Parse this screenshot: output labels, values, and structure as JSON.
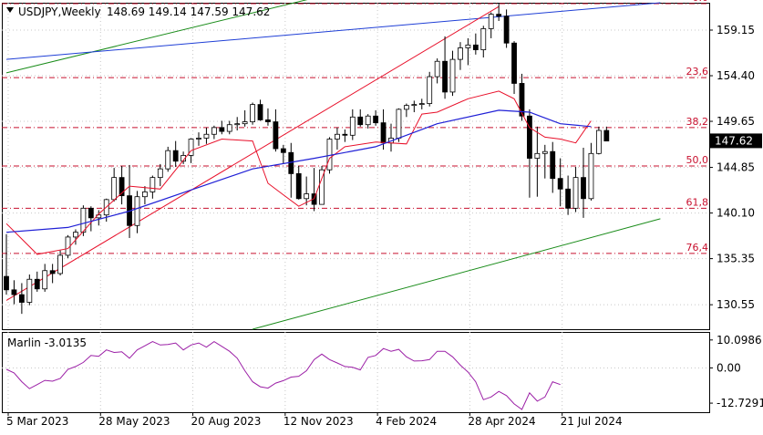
{
  "header": {
    "symbol_tf": "USDJPY,Weekly",
    "ohlc": "148.69 149.14 147.59 147.62"
  },
  "indicator": {
    "name": "Marlin -3.0135",
    "yticks": [
      "10.0986",
      "0.00",
      "-12.7291"
    ]
  },
  "colors": {
    "bull": "#ffffff",
    "bear": "#000000",
    "ma_blue": "#1f1fd6",
    "env_red": "#e8102a",
    "fib_red": "#c8102e",
    "trend_green": "#1a8c1a",
    "trend_blue": "#1f3fd6",
    "osc": "#9b1fa6",
    "price_tag": "#000000"
  },
  "chart_data": {
    "type": "candlestick",
    "timeframe": "weekly",
    "symbol": "USDJPY",
    "y_range": [
      128.0,
      162.0
    ],
    "price_ticks": [
      "159.15",
      "154.40",
      "149.65",
      "144.85",
      "140.10",
      "135.35",
      "130.55"
    ],
    "x_labels": [
      "5 Mar 2023",
      "28 May 2023",
      "20 Aug 2023",
      "12 Nov 2023",
      "4 Feb 2024",
      "28 Apr 2024",
      "21 Jul 2024"
    ],
    "current_price": "147.62",
    "fib_levels": [
      {
        "label": "0.0",
        "price": 161.9
      },
      {
        "label": "23,6",
        "price": 154.2
      },
      {
        "label": "38,2",
        "price": 149.0
      },
      {
        "label": "50,0",
        "price": 145.0
      },
      {
        "label": "61,8",
        "price": 140.6
      },
      {
        "label": "76,4",
        "price": 135.9
      }
    ],
    "candles": [
      [
        133.5,
        137.9,
        131.6,
        132.1
      ],
      [
        132.1,
        133.1,
        130.6,
        131.6
      ],
      [
        131.6,
        132.8,
        129.6,
        130.8
      ],
      [
        130.8,
        133.7,
        130.5,
        133.2
      ],
      [
        133.2,
        134.0,
        131.9,
        132.2
      ],
      [
        132.2,
        134.8,
        131.9,
        134.1
      ],
      [
        134.1,
        134.8,
        132.8,
        133.8
      ],
      [
        133.8,
        136.2,
        133.6,
        135.7
      ],
      [
        135.7,
        137.8,
        135.4,
        137.6
      ],
      [
        137.6,
        138.4,
        136.8,
        138.1
      ],
      [
        138.1,
        140.9,
        137.7,
        140.6
      ],
      [
        140.6,
        140.8,
        138.2,
        139.6
      ],
      [
        139.6,
        140.4,
        138.8,
        139.9
      ],
      [
        139.9,
        141.6,
        139.2,
        141.5
      ],
      [
        141.5,
        144.8,
        141.3,
        143.8
      ],
      [
        143.8,
        145.0,
        141.0,
        141.9
      ],
      [
        141.9,
        145.1,
        137.5,
        138.8
      ],
      [
        138.8,
        142.4,
        138.0,
        141.8
      ],
      [
        141.8,
        142.9,
        141.0,
        142.3
      ],
      [
        142.3,
        144.0,
        141.6,
        143.8
      ],
      [
        143.8,
        145.2,
        142.9,
        144.7
      ],
      [
        144.7,
        147.0,
        144.4,
        146.6
      ],
      [
        146.6,
        147.6,
        144.9,
        145.5
      ],
      [
        145.5,
        146.5,
        145.2,
        146.1
      ],
      [
        146.1,
        147.9,
        145.3,
        147.8
      ],
      [
        147.8,
        148.5,
        147.1,
        147.9
      ],
      [
        147.9,
        149.0,
        147.3,
        148.3
      ],
      [
        148.3,
        149.2,
        147.8,
        149.0
      ],
      [
        149.0,
        149.7,
        148.3,
        148.6
      ],
      [
        148.6,
        149.7,
        148.3,
        149.3
      ],
      [
        149.3,
        150.1,
        148.7,
        149.4
      ],
      [
        149.4,
        150.8,
        149.1,
        149.6
      ],
      [
        149.6,
        151.6,
        149.3,
        151.4
      ],
      [
        151.4,
        151.9,
        149.7,
        149.8
      ],
      [
        149.8,
        151.0,
        149.2,
        149.6
      ],
      [
        149.6,
        150.9,
        146.5,
        146.8
      ],
      [
        146.8,
        147.2,
        145.2,
        146.4
      ],
      [
        146.4,
        147.4,
        141.7,
        144.2
      ],
      [
        144.2,
        145.0,
        141.5,
        141.6
      ],
      [
        141.6,
        143.9,
        140.9,
        142.1
      ],
      [
        142.1,
        144.8,
        140.3,
        141.0
      ],
      [
        141.0,
        145.0,
        141.0,
        144.6
      ],
      [
        144.6,
        148.0,
        144.2,
        147.8
      ],
      [
        147.8,
        149.0,
        146.7,
        148.3
      ],
      [
        148.3,
        148.8,
        147.5,
        148.2
      ],
      [
        148.2,
        150.9,
        147.7,
        150.1
      ],
      [
        150.1,
        150.9,
        149.1,
        149.3
      ],
      [
        149.3,
        150.4,
        148.9,
        150.2
      ],
      [
        150.2,
        150.8,
        149.2,
        149.5
      ],
      [
        149.5,
        150.9,
        146.7,
        147.4
      ],
      [
        147.4,
        149.4,
        146.5,
        147.9
      ],
      [
        147.9,
        151.0,
        147.5,
        150.9
      ],
      [
        150.9,
        151.5,
        150.1,
        151.3
      ],
      [
        151.3,
        151.8,
        150.6,
        151.4
      ],
      [
        151.4,
        152.0,
        150.9,
        151.5
      ],
      [
        151.5,
        154.8,
        151.2,
        154.3
      ],
      [
        154.3,
        156.2,
        153.6,
        155.9
      ],
      [
        155.9,
        158.5,
        152.0,
        152.7
      ],
      [
        152.7,
        157.0,
        152.3,
        156.1
      ],
      [
        156.1,
        157.9,
        155.0,
        157.3
      ],
      [
        157.3,
        158.3,
        155.5,
        157.6
      ],
      [
        157.6,
        158.8,
        156.6,
        157.1
      ],
      [
        157.1,
        159.6,
        156.3,
        159.3
      ],
      [
        159.3,
        161.0,
        158.3,
        160.8
      ],
      [
        160.8,
        161.9,
        160.1,
        160.6
      ],
      [
        160.6,
        161.3,
        157.3,
        157.8
      ],
      [
        157.8,
        158.0,
        152.5,
        153.6
      ],
      [
        153.6,
        154.6,
        149.7,
        150.2
      ],
      [
        150.2,
        150.9,
        141.7,
        145.8
      ],
      [
        145.8,
        149.1,
        141.8,
        146.3
      ],
      [
        146.3,
        147.2,
        143.7,
        146.5
      ],
      [
        146.5,
        147.5,
        142.2,
        143.7
      ],
      [
        143.7,
        145.8,
        140.8,
        142.6
      ],
      [
        142.6,
        144.0,
        139.9,
        140.6
      ],
      [
        140.6,
        144.9,
        140.2,
        143.8
      ],
      [
        143.8,
        146.9,
        139.6,
        141.6
      ],
      [
        141.6,
        147.4,
        141.4,
        146.3
      ],
      [
        146.3,
        149.1,
        146.2,
        148.7
      ],
      [
        148.7,
        149.1,
        147.6,
        147.6
      ]
    ],
    "ma_blue": [
      [
        0,
        138.1
      ],
      [
        8,
        138.6
      ],
      [
        16,
        140.3
      ],
      [
        24,
        142.5
      ],
      [
        32,
        144.7
      ],
      [
        40,
        145.8
      ],
      [
        48,
        147.0
      ],
      [
        56,
        149.4
      ],
      [
        64,
        150.8
      ],
      [
        68,
        150.6
      ],
      [
        72,
        149.4
      ],
      [
        76,
        149.1
      ]
    ],
    "envelope_red": [
      [
        0,
        139.0
      ],
      [
        4,
        135.8
      ],
      [
        8,
        136.4
      ],
      [
        12,
        140.0
      ],
      [
        16,
        142.9
      ],
      [
        20,
        142.6
      ],
      [
        24,
        146.6
      ],
      [
        28,
        147.8
      ],
      [
        32,
        147.6
      ],
      [
        34,
        143.2
      ],
      [
        36,
        142.0
      ],
      [
        38,
        140.8
      ],
      [
        40,
        141.6
      ],
      [
        42,
        145.8
      ],
      [
        44,
        147.0
      ],
      [
        48,
        147.5
      ],
      [
        52,
        147.3
      ],
      [
        54,
        150.4
      ],
      [
        56,
        150.6
      ],
      [
        60,
        152.0
      ],
      [
        64,
        152.8
      ],
      [
        66,
        152.0
      ],
      [
        68,
        149.0
      ],
      [
        70,
        148.0
      ],
      [
        72,
        147.8
      ],
      [
        74,
        147.4
      ],
      [
        76,
        149.7
      ]
    ],
    "trend_lines": [
      {
        "name": "green_upper",
        "from": [
          0,
          154.7
        ],
        "to": [
          40,
          162.5
        ]
      },
      {
        "name": "blue_resistance",
        "from": [
          0,
          156.1
        ],
        "to": [
          85,
          162.0
        ]
      },
      {
        "name": "red_support",
        "from": [
          0,
          131.0
        ],
        "to": [
          64,
          161.6
        ]
      },
      {
        "name": "green_lower",
        "from": [
          32,
          128.0
        ],
        "to": [
          85,
          139.5
        ]
      }
    ],
    "oscillator": {
      "y_range": [
        -16.0,
        13.0
      ],
      "values": [
        -0.5,
        -1.8,
        -5.0,
        -7.5,
        -6.0,
        -4.5,
        -4.8,
        -3.8,
        -0.5,
        0.5,
        2.0,
        4.5,
        4.2,
        6.5,
        5.6,
        5.8,
        3.5,
        6.5,
        8.0,
        9.5,
        8.3,
        8.5,
        9.0,
        6.5,
        8.3,
        9.0,
        7.5,
        9.5,
        7.8,
        6.0,
        3.5,
        -1.0,
        -5.0,
        -6.8,
        -7.3,
        -5.5,
        -4.6,
        -3.3,
        -3.0,
        -1.0,
        3.0,
        5.0,
        3.0,
        1.8,
        0.5,
        0.2,
        -0.7,
        3.8,
        4.5,
        7.0,
        6.0,
        6.7,
        4.0,
        2.5,
        2.6,
        3.0,
        6.0,
        6.0,
        4.0,
        1.0,
        -1.5,
        -5.0,
        -11.5,
        -10.5,
        -8.5,
        -10.0,
        -13.0,
        -15.0,
        -9.0,
        -12.0,
        -10.5,
        -5.0,
        -6.0
      ]
    }
  }
}
